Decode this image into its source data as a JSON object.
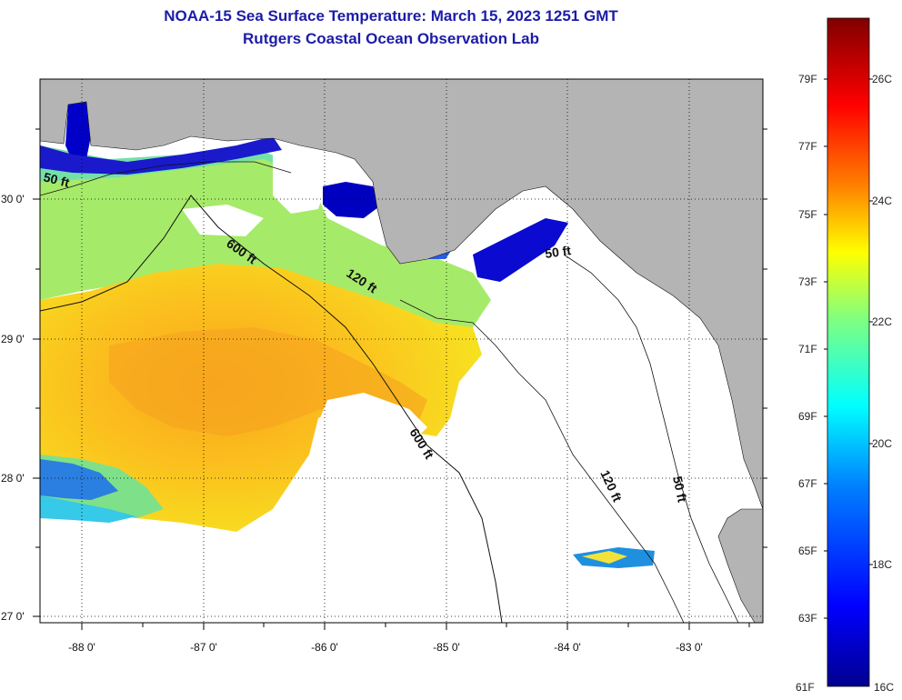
{
  "header": {
    "title": "NOAA-15 Sea Surface Temperature:  March 15, 2023 1251 GMT",
    "subtitle": "Rutgers Coastal Ocean Observation Lab"
  },
  "map": {
    "lat_labels": [
      "30 0'",
      "29 0'",
      "28 0'",
      "27 0'"
    ],
    "lon_labels": [
      "-88 0'",
      "-87 0'",
      "-86 0'",
      "-85 0'",
      "-84 0'",
      "-83 0'"
    ],
    "contour_labels": {
      "west_50": "50 ft",
      "mid_600": "600 ft",
      "mid_120": "120 ft",
      "east_50": "50 ft",
      "south_600": "600 ft",
      "south_120": "120 ft",
      "south_50": "50 ft"
    },
    "land_color": "#b4b4b4",
    "nodata_color": "#ffffff"
  },
  "colorbar": {
    "fahrenheit_labels": [
      "79F",
      "77F",
      "75F",
      "73F",
      "71F",
      "69F",
      "67F",
      "65F",
      "63F",
      "61F"
    ],
    "celsius_labels": [
      "26C",
      "24C",
      "22C",
      "20C",
      "18C",
      "16C"
    ],
    "colors": [
      "#00008f",
      "#0000ff",
      "#0080ff",
      "#00ffff",
      "#80ff80",
      "#ffff00",
      "#ff8000",
      "#ff0000",
      "#800000"
    ]
  }
}
